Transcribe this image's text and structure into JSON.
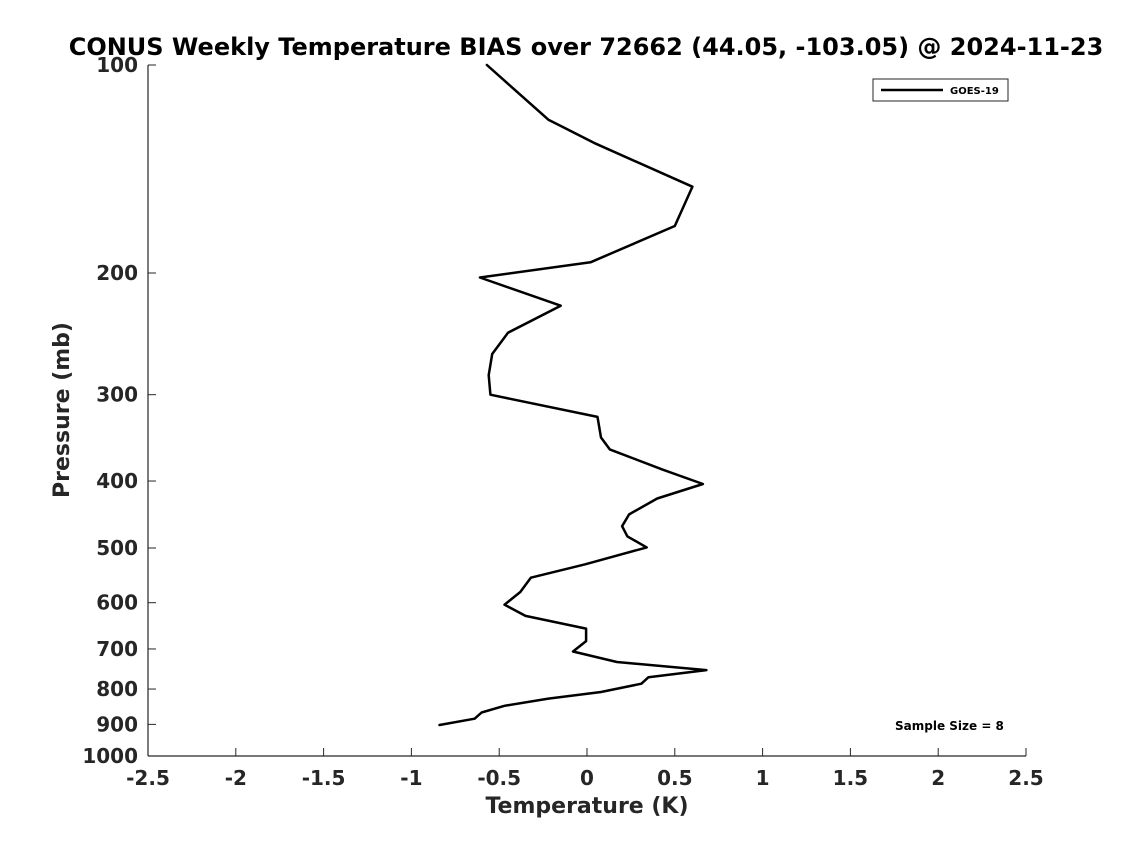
{
  "chart_data": {
    "type": "line",
    "title": "CONUS Weekly Temperature BIAS over 72662 (44.05, -103.05) @ 2024-11-23",
    "xlabel": "Temperature (K)",
    "ylabel": "Pressure (mb)",
    "xlim": [
      -2.5,
      2.5
    ],
    "ylim": [
      100,
      1000
    ],
    "y_scale": "log",
    "y_reversed": true,
    "grid": false,
    "legend_position": "top-right",
    "x_ticks": [
      -2.5,
      -2,
      -1.5,
      -1,
      -0.5,
      0,
      0.5,
      1,
      1.5,
      2,
      2.5
    ],
    "x_tick_labels": [
      "-2.5",
      "-2",
      "-1.5",
      "-1",
      "-0.5",
      "0",
      "0.5",
      "1",
      "1.5",
      "2",
      "2.5"
    ],
    "y_ticks": [
      100,
      200,
      300,
      400,
      500,
      600,
      700,
      800,
      900,
      1000
    ],
    "y_tick_labels": [
      "100",
      "200",
      "300",
      "400",
      "500",
      "600",
      "700",
      "800",
      "900",
      "1000"
    ],
    "series": [
      {
        "name": "GOES-19",
        "color": "#000000",
        "points": [
          [
            -0.57,
            100
          ],
          [
            -0.22,
            120
          ],
          [
            0.05,
            130
          ],
          [
            0.6,
            150
          ],
          [
            0.5,
            171
          ],
          [
            0.02,
            193
          ],
          [
            -0.61,
            203
          ],
          [
            -0.15,
            223
          ],
          [
            -0.45,
            244
          ],
          [
            -0.54,
            262
          ],
          [
            -0.56,
            281
          ],
          [
            -0.55,
            300
          ],
          [
            0.06,
            323
          ],
          [
            0.08,
            346
          ],
          [
            0.13,
            360
          ],
          [
            0.43,
            385
          ],
          [
            0.66,
            404
          ],
          [
            0.4,
            424
          ],
          [
            0.24,
            447
          ],
          [
            0.2,
            465
          ],
          [
            0.23,
            481
          ],
          [
            0.34,
            499
          ],
          [
            -0.01,
            528
          ],
          [
            -0.32,
            552
          ],
          [
            -0.38,
            579
          ],
          [
            -0.47,
            604
          ],
          [
            -0.35,
            627
          ],
          [
            -0.005,
            654
          ],
          [
            -0.005,
            682
          ],
          [
            -0.08,
            706
          ],
          [
            0.17,
            731
          ],
          [
            0.68,
            751
          ],
          [
            0.35,
            769
          ],
          [
            0.31,
            786
          ],
          [
            0.08,
            808
          ],
          [
            -0.22,
            826
          ],
          [
            -0.47,
            846
          ],
          [
            -0.6,
            865
          ],
          [
            -0.64,
            883
          ],
          [
            -0.84,
            902
          ]
        ]
      }
    ],
    "annotations": [
      "Sample Size = 8"
    ]
  }
}
